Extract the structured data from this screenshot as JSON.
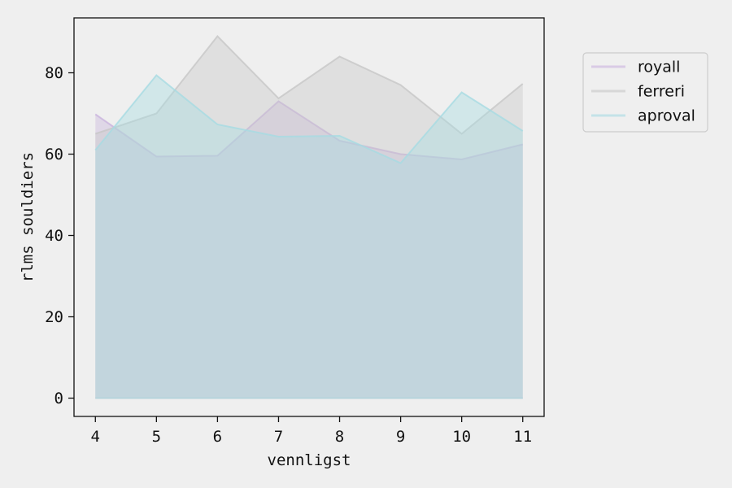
{
  "chart_data": {
    "type": "area",
    "xlabel": "vennligst",
    "ylabel": "rlms souldiers",
    "x": [
      4,
      5,
      6,
      7,
      8,
      9,
      10,
      11
    ],
    "xlim": [
      3.65,
      11.35
    ],
    "ylim": [
      -4.5,
      93.5
    ],
    "xticks": [
      "4",
      "5",
      "6",
      "7",
      "8",
      "9",
      "10",
      "11"
    ],
    "yticks": [
      "0",
      "20",
      "40",
      "60",
      "80"
    ],
    "grid": false,
    "legend_position": "outside-top-right",
    "series": [
      {
        "name": "royall",
        "color": "#c9b3dd",
        "values": [
          69.8,
          59.4,
          59.6,
          73.0,
          63.3,
          60.0,
          58.7,
          62.4
        ]
      },
      {
        "name": "ferreri",
        "color": "#c7c7c7",
        "values": [
          65.0,
          70.0,
          89.0,
          73.7,
          84.0,
          77.0,
          65.0,
          77.3
        ]
      },
      {
        "name": "aproval",
        "color": "#a6dbe2",
        "values": [
          61.0,
          79.4,
          67.3,
          64.3,
          64.5,
          57.8,
          75.2,
          65.7
        ]
      }
    ]
  }
}
